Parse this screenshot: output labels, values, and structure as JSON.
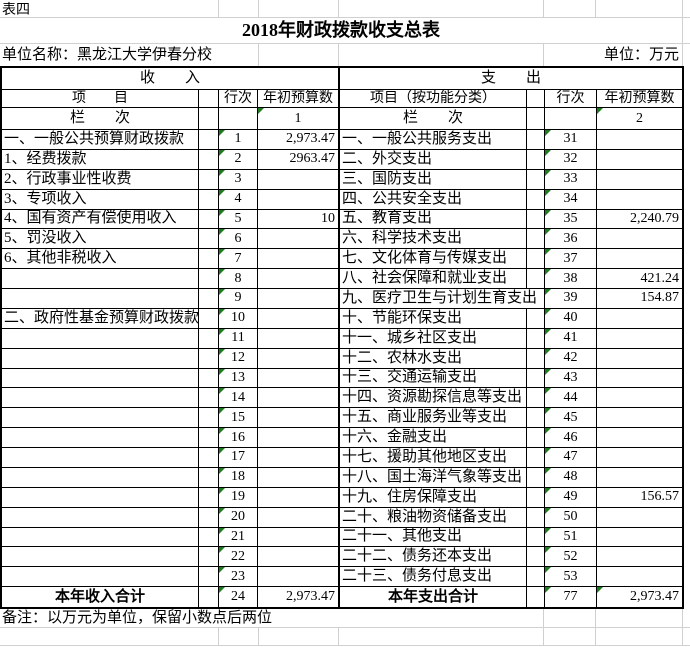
{
  "sheet_label": "表四",
  "title": "2018年财政拨款收支总表",
  "unit_name": "单位名称：黑龙江大学伊春分校",
  "unit": "单位：万元",
  "note": "备注：以万元为单位，保留小数点后两位",
  "colors": {
    "error_indicator_green": "#1e7b1e",
    "faint_gridline": "#d0d0d0",
    "table_border": "#000000"
  },
  "income": {
    "section_title": "收　　入",
    "item_header": "项　　目",
    "line_header": "行次",
    "amount_header": "年初预算数",
    "lanci_label": "栏　　次",
    "lanci_value": "1",
    "rows": [
      {
        "label": "一、一般公共预算财政拨款",
        "line": "1",
        "amount": "2,973.47"
      },
      {
        "label": "1、经费拨款",
        "line": "2",
        "amount": "2963.47"
      },
      {
        "label": "2、行政事业性收费",
        "line": "3",
        "amount": ""
      },
      {
        "label": "3、专项收入",
        "line": "4",
        "amount": ""
      },
      {
        "label": "4、国有资产有偿使用收入",
        "line": "5",
        "amount": "10"
      },
      {
        "label": "5、罚没收入",
        "line": "6",
        "amount": ""
      },
      {
        "label": "6、其他非税收入",
        "line": "7",
        "amount": ""
      },
      {
        "label": "",
        "line": "8",
        "amount": ""
      },
      {
        "label": "",
        "line": "9",
        "amount": ""
      },
      {
        "label": "二、政府性基金预算财政拨款",
        "line": "10",
        "amount": ""
      },
      {
        "label": "",
        "line": "11",
        "amount": ""
      },
      {
        "label": "",
        "line": "12",
        "amount": ""
      },
      {
        "label": "",
        "line": "13",
        "amount": ""
      },
      {
        "label": "",
        "line": "14",
        "amount": ""
      },
      {
        "label": "",
        "line": "15",
        "amount": ""
      },
      {
        "label": "",
        "line": "16",
        "amount": ""
      },
      {
        "label": "",
        "line": "17",
        "amount": ""
      },
      {
        "label": "",
        "line": "18",
        "amount": ""
      },
      {
        "label": "",
        "line": "19",
        "amount": ""
      },
      {
        "label": "",
        "line": "20",
        "amount": ""
      },
      {
        "label": "",
        "line": "21",
        "amount": ""
      },
      {
        "label": "",
        "line": "22",
        "amount": ""
      },
      {
        "label": "",
        "line": "23",
        "amount": ""
      }
    ],
    "total": {
      "label": "本年收入合计",
      "line": "24",
      "amount": "2,973.47"
    }
  },
  "expenditure": {
    "section_title": "支　　出",
    "item_header": "项目（按功能分类）",
    "line_header": "行次",
    "amount_header": "年初预算数",
    "lanci_label": "栏　　次",
    "lanci_value": "2",
    "rows": [
      {
        "label": "一、一般公共服务支出",
        "line": "31",
        "amount": ""
      },
      {
        "label": "二、外交支出",
        "line": "32",
        "amount": ""
      },
      {
        "label": "三、国防支出",
        "line": "33",
        "amount": ""
      },
      {
        "label": "四、公共安全支出",
        "line": "34",
        "amount": ""
      },
      {
        "label": "五、教育支出",
        "line": "35",
        "amount": "2,240.79"
      },
      {
        "label": "六、科学技术支出",
        "line": "36",
        "amount": ""
      },
      {
        "label": "七、文化体育与传媒支出",
        "line": "37",
        "amount": ""
      },
      {
        "label": "八、社会保障和就业支出",
        "line": "38",
        "amount": "421.24"
      },
      {
        "label": "九、医疗卫生与计划生育支出",
        "line": "39",
        "amount": "154.87"
      },
      {
        "label": "十、节能环保支出",
        "line": "40",
        "amount": ""
      },
      {
        "label": "十一、城乡社区支出",
        "line": "41",
        "amount": ""
      },
      {
        "label": "十二、农林水支出",
        "line": "42",
        "amount": ""
      },
      {
        "label": "十三、交通运输支出",
        "line": "43",
        "amount": ""
      },
      {
        "label": "十四、资源勘探信息等支出",
        "line": "44",
        "amount": ""
      },
      {
        "label": "十五、商业服务业等支出",
        "line": "45",
        "amount": ""
      },
      {
        "label": "十六、金融支出",
        "line": "46",
        "amount": ""
      },
      {
        "label": "十七、援助其他地区支出",
        "line": "47",
        "amount": ""
      },
      {
        "label": "十八、国土海洋气象等支出",
        "line": "48",
        "amount": ""
      },
      {
        "label": "十九、住房保障支出",
        "line": "49",
        "amount": "156.57"
      },
      {
        "label": "二十、粮油物资储备支出",
        "line": "50",
        "amount": ""
      },
      {
        "label": "二十一、其他支出",
        "line": "51",
        "amount": ""
      },
      {
        "label": "二十二、债务还本支出",
        "line": "52",
        "amount": ""
      },
      {
        "label": "二十三、债务付息支出",
        "line": "53",
        "amount": ""
      }
    ],
    "total": {
      "label": "本年支出合计",
      "line": "77",
      "amount": "2,973.47",
      "amount_flagged": true
    }
  }
}
